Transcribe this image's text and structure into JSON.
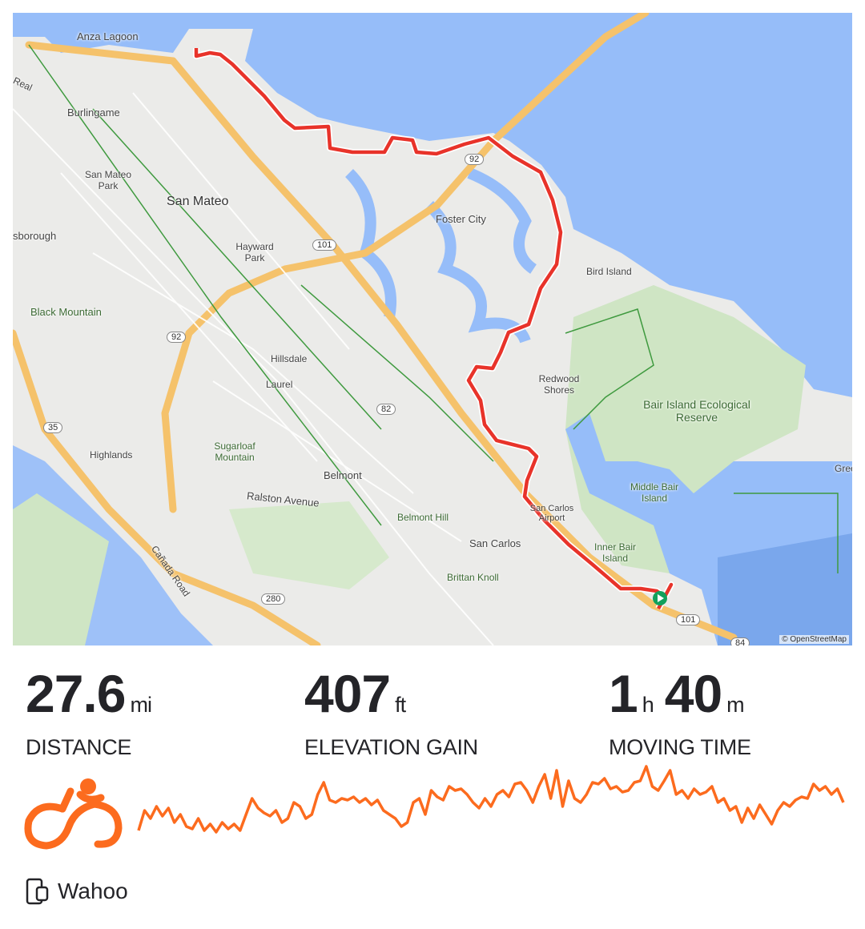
{
  "map": {
    "attribution": "© OpenStreetMap",
    "labels": [
      "Anza Lagoon",
      "Burlingame",
      "San Mateo Park",
      "San Mateo",
      "sborough",
      "Hayward Park",
      "Foster City",
      "Bird Island",
      "Black Mountain",
      "Hillsdale",
      "Laurel",
      "Redwood Shores",
      "Bair Island Ecological Reserve",
      "Highlands",
      "Sugarloaf Mountain",
      "Belmont",
      "Ralston Avenue",
      "Middle Bair Island",
      "Belmont Hill",
      "San Carlos Airport",
      "Inner Bair Island",
      "San Carlos",
      "Brittan Knoll",
      "Cañada Road",
      "Gree",
      "Real"
    ],
    "shields": [
      "92",
      "101",
      "92",
      "82",
      "35",
      "280",
      "101",
      "84"
    ],
    "colors": {
      "water": "#96bdf9",
      "land": "#ebebe9",
      "park": "#cfe5c4",
      "highway": "#f5c26b",
      "route": "#e8332a"
    },
    "start_marker_icon": "play-flag-icon"
  },
  "stats": [
    {
      "value": "27.6",
      "unit": "mi",
      "label": "DISTANCE"
    },
    {
      "value": "407",
      "unit": "ft",
      "label": "ELEVATION GAIN"
    },
    {
      "value1": "1",
      "unit1": "h",
      "value2": "40",
      "unit2": "m",
      "label": "MOVING TIME"
    }
  ],
  "activity_icon": "cycling-icon",
  "accent_color": "#fc6b1e",
  "profile": {
    "values": [
      20,
      45,
      35,
      50,
      38,
      48,
      30,
      40,
      25,
      22,
      35,
      20,
      28,
      18,
      30,
      22,
      28,
      20,
      40,
      60,
      48,
      42,
      38,
      45,
      30,
      35,
      55,
      50,
      35,
      40,
      65,
      80,
      58,
      55,
      60,
      58,
      62,
      55,
      60,
      52,
      58,
      45,
      40,
      35,
      25,
      30,
      55,
      60,
      40,
      70,
      62,
      58,
      75,
      70,
      72,
      65,
      55,
      48,
      60,
      50,
      65,
      70,
      62,
      78,
      80,
      70,
      55,
      75,
      90,
      60,
      95,
      50,
      82,
      60,
      55,
      65,
      80,
      78,
      85,
      72,
      75,
      68,
      70,
      80,
      82,
      100,
      75,
      70,
      82,
      95,
      65,
      70,
      60,
      72,
      65,
      68,
      75,
      55,
      60,
      45,
      50,
      30,
      48,
      35,
      52,
      40,
      28,
      45,
      55,
      50,
      58,
      62,
      60,
      78,
      70,
      75,
      65,
      72,
      55
    ]
  },
  "device": {
    "icon": "device-watch-icon",
    "name": "Wahoo"
  }
}
